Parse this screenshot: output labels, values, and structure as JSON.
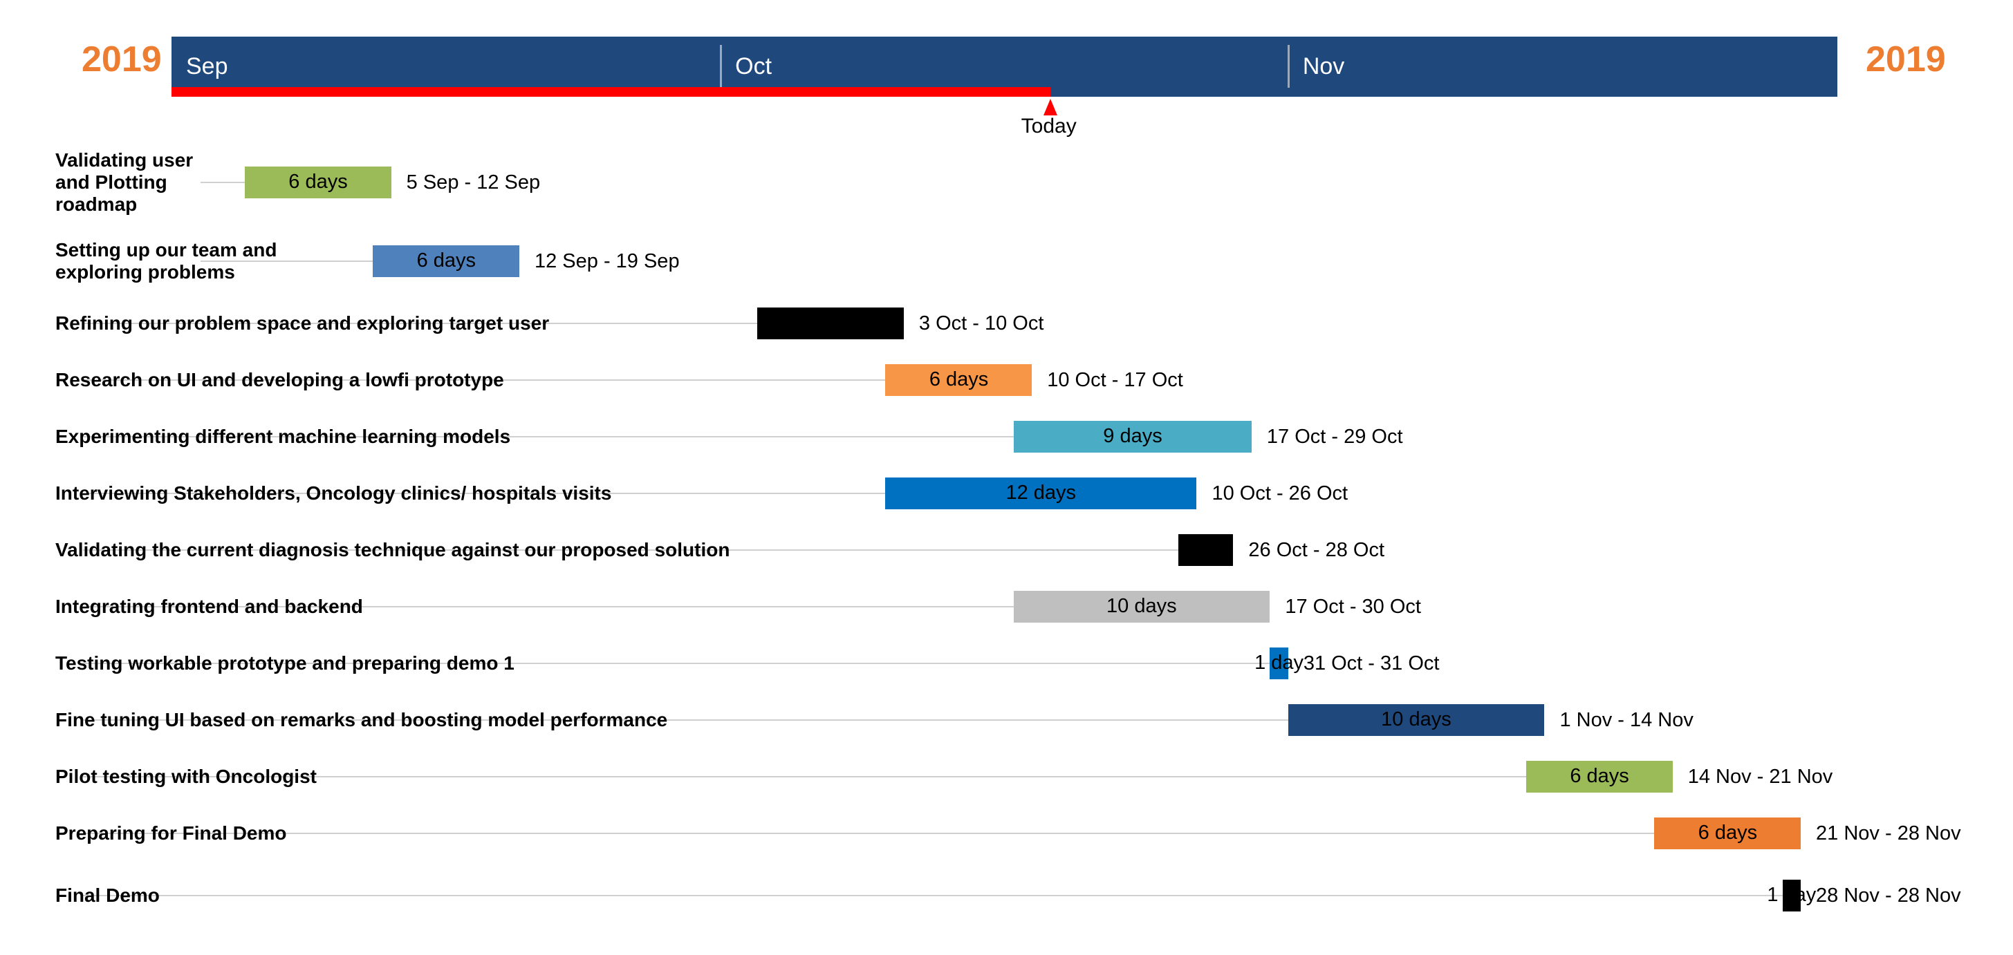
{
  "chart_data": {
    "type": "gantt",
    "year_left": "2019",
    "year_right": "2019",
    "axis_start": "2019-09-01",
    "axis_end": "2019-11-30",
    "months": [
      {
        "label": "Sep",
        "start": "2019-09-01"
      },
      {
        "label": "Oct",
        "start": "2019-10-01"
      },
      {
        "label": "Nov",
        "start": "2019-11-01"
      }
    ],
    "today": {
      "label": "Today",
      "date": "2019-10-19"
    },
    "tasks": [
      {
        "name": "Validating user and Plotting roadmap",
        "start": "2019-09-05",
        "end": "2019-09-12",
        "duration": "6 days",
        "range": "5 Sep - 12 Sep",
        "color": "#9BBB59"
      },
      {
        "name": "Setting up our team and exploring problems",
        "start": "2019-09-12",
        "end": "2019-09-19",
        "duration": "6 days",
        "range": "12 Sep - 19 Sep",
        "color": "#4F81BD"
      },
      {
        "name": "Refining our problem space and exploring target user",
        "start": "2019-10-03",
        "end": "2019-10-10",
        "duration": "",
        "range": "3 Oct - 10 Oct",
        "color": "#000000"
      },
      {
        "name": "Research on UI and developing a lowfi prototype",
        "start": "2019-10-10",
        "end": "2019-10-17",
        "duration": "6 days",
        "range": "10 Oct - 17 Oct",
        "color": "#F79646"
      },
      {
        "name": "Experimenting different machine learning models",
        "start": "2019-10-17",
        "end": "2019-10-29",
        "duration": "9 days",
        "range": "17 Oct - 29 Oct",
        "color": "#4BACC6"
      },
      {
        "name": "Interviewing Stakeholders, Oncology clinics/ hospitals visits",
        "start": "2019-10-10",
        "end": "2019-10-26",
        "duration": "12 days",
        "range": "10 Oct - 26 Oct",
        "color": "#0070C0"
      },
      {
        "name": "Validating the current diagnosis technique against our proposed solution",
        "start": "2019-10-26",
        "end": "2019-10-28",
        "duration": "",
        "range": "26 Oct - 28 Oct",
        "color": "#000000"
      },
      {
        "name": "Integrating frontend and backend",
        "start": "2019-10-17",
        "end": "2019-10-30",
        "duration": "10 days",
        "range": "17 Oct - 30 Oct",
        "color": "#BFBFBF"
      },
      {
        "name": "Testing workable prototype and preparing demo 1",
        "start": "2019-10-31",
        "end": "2019-10-31",
        "duration": "1 day",
        "range": "31 Oct - 31 Oct",
        "color": "#0070C0"
      },
      {
        "name": "Fine tuning UI based on remarks and boosting model performance",
        "start": "2019-11-01",
        "end": "2019-11-14",
        "duration": "10 days",
        "range": "1 Nov - 14 Nov",
        "color": "#1F497D"
      },
      {
        "name": "Pilot testing with Oncologist",
        "start": "2019-11-14",
        "end": "2019-11-21",
        "duration": "6 days",
        "range": "14 Nov - 21 Nov",
        "color": "#9BBB59"
      },
      {
        "name": "Preparing for Final Demo",
        "start": "2019-11-21",
        "end": "2019-11-28",
        "duration": "6 days",
        "range": "21 Nov - 28 Nov",
        "color": "#ED7D31"
      },
      {
        "name": "Final Demo",
        "start": "2019-11-28",
        "end": "2019-11-28",
        "duration": "1 day",
        "range": "28 Nov - 28 Nov",
        "color": "#000000"
      }
    ]
  }
}
